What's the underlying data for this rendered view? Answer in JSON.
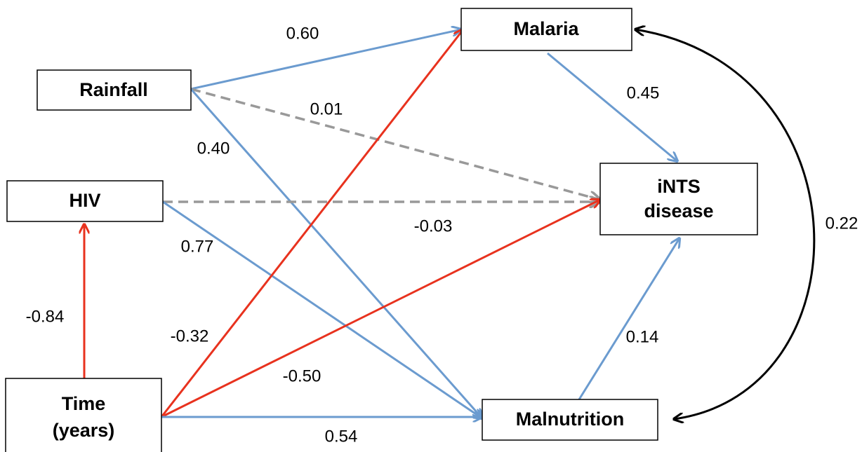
{
  "nodes": [
    {
      "lines": [
        "Malaria"
      ]
    },
    {
      "lines": [
        "Rainfall"
      ]
    },
    {
      "lines": [
        "HIV"
      ]
    },
    {
      "lines": [
        "iNTS",
        "disease"
      ]
    },
    {
      "lines": [
        "Time",
        "(years)"
      ]
    },
    {
      "lines": [
        "Malnutrition"
      ]
    }
  ],
  "edges": [
    {
      "label": "0.60"
    },
    {
      "label": "0.01"
    },
    {
      "label": "0.40"
    },
    {
      "label": "-0.03"
    },
    {
      "label": "0.77"
    },
    {
      "label": "-0.84"
    },
    {
      "label": "-0.32"
    },
    {
      "label": "-0.50"
    },
    {
      "label": "0.54"
    },
    {
      "label": "0.45"
    },
    {
      "label": "0.14"
    },
    {
      "label": "0.22"
    }
  ]
}
